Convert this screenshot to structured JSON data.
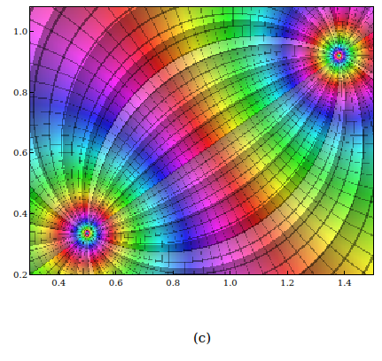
{
  "chart_data": {
    "type": "phase_portrait",
    "caption": "(c)",
    "singular_points": [
      [
        0.5,
        0.335
      ],
      [
        1.38,
        0.92
      ]
    ],
    "xlim": [
      0.3,
      1.5
    ],
    "ylim": [
      0.2,
      1.08
    ],
    "xticks": [
      0.4,
      0.6,
      0.8,
      {
        "value": 1,
        "label": "1.0"
      },
      1.2,
      1.4
    ],
    "yticks": [
      0.2,
      0.4,
      0.6,
      0.8,
      {
        "value": 1,
        "label": "1.0"
      }
    ],
    "tick_labels": true,
    "grid": false
  }
}
